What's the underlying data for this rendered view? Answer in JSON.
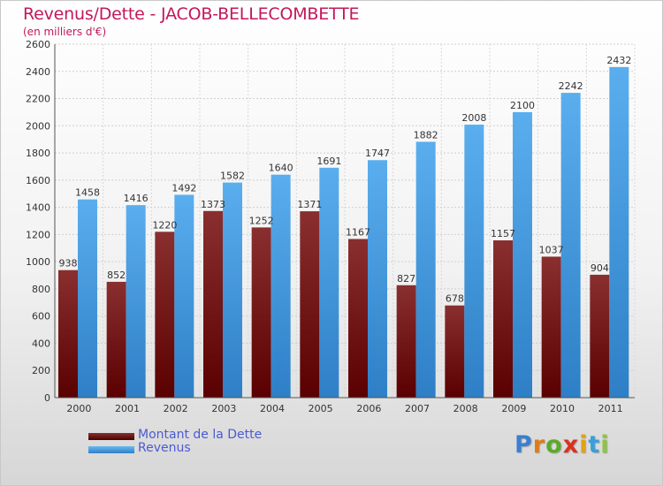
{
  "chart_data": {
    "type": "bar",
    "title": "Revenus/Dette - JACOB-BELLECOMBETTE",
    "subtitle": "(en milliers d'€)",
    "categories": [
      "2000",
      "2001",
      "2002",
      "2003",
      "2004",
      "2005",
      "2006",
      "2007",
      "2008",
      "2009",
      "2010",
      "2011"
    ],
    "series": [
      {
        "name": "Montant de la Dette",
        "color": "#6b0e0e",
        "values": [
          938,
          852,
          1220,
          1373,
          1252,
          1371,
          1167,
          827,
          678,
          1157,
          1037,
          904
        ]
      },
      {
        "name": "Revenus",
        "color": "#4aa3e8",
        "values": [
          1458,
          1416,
          1492,
          1582,
          1640,
          1691,
          1747,
          1882,
          2008,
          2100,
          2242,
          2432
        ]
      }
    ],
    "ylim": [
      0,
      2600
    ],
    "yticks": [
      0,
      200,
      400,
      600,
      800,
      1000,
      1200,
      1400,
      1600,
      1800,
      2000,
      2200,
      2400,
      2600
    ],
    "grid": true,
    "legend": "bottom-left"
  },
  "brand": {
    "letters": [
      "P",
      "r",
      "o",
      "x",
      "i",
      "t",
      "i"
    ],
    "colors": [
      "#3a7fd0",
      "#e07b1a",
      "#5aaa2a",
      "#d9321e",
      "#e0a21a",
      "#3a9fd8",
      "#8cc63f"
    ]
  }
}
